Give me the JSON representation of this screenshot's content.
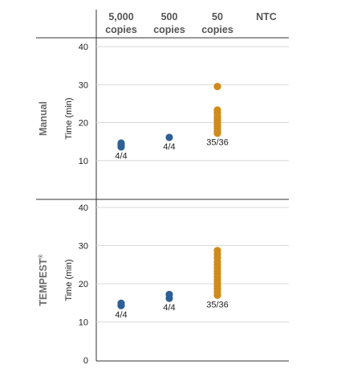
{
  "chart_data": {
    "type": "scatter",
    "columns": [
      {
        "line1": "5,000",
        "line2": "copies"
      },
      {
        "line1": "500",
        "line2": "copies"
      },
      {
        "line1": "50",
        "line2": "copies"
      },
      {
        "line1": "NTC",
        "line2": ""
      }
    ],
    "colors": {
      "blue": "#2f5f95",
      "orange": "#d18a1c",
      "grid": "#d9d9d9",
      "axis": "#333333"
    },
    "panels": [
      {
        "label": "Manual",
        "label_sup": "",
        "ylabel": "Time (min)",
        "ylim": [
          0,
          40
        ],
        "yticks": [
          10,
          20,
          30,
          40
        ],
        "groups": [
          {
            "column": 0,
            "color": "blue",
            "values": [
              13.6,
              14.1,
              14.6
            ],
            "annotation": "4/4"
          },
          {
            "column": 1,
            "color": "blue",
            "values": [
              16.1
            ],
            "annotation": "4/4"
          },
          {
            "column": 2,
            "color": "orange",
            "values": [
              17.2,
              17.8,
              18.3,
              18.9,
              19.4,
              20.0,
              20.6,
              21.2,
              21.8,
              22.6,
              23.3,
              29.5
            ],
            "annotation": "35/36"
          }
        ]
      },
      {
        "label": "TEMPEST",
        "label_sup": "®",
        "ylabel": "Time (min)",
        "ylim": [
          0,
          40
        ],
        "yticks": [
          0,
          10,
          20,
          30,
          40
        ],
        "groups": [
          {
            "column": 0,
            "color": "blue",
            "values": [
              14.3,
              14.9
            ],
            "annotation": "4/4"
          },
          {
            "column": 1,
            "color": "blue",
            "values": [
              16.2,
              17.2
            ],
            "annotation": "4/4"
          },
          {
            "column": 2,
            "color": "orange",
            "values": [
              17.0,
              17.8,
              18.6,
              19.4,
              20.2,
              21.0,
              21.8,
              22.6,
              23.4,
              24.2,
              25.0,
              25.8,
              26.8,
              27.8,
              28.7
            ],
            "annotation": "35/36"
          }
        ]
      }
    ]
  }
}
